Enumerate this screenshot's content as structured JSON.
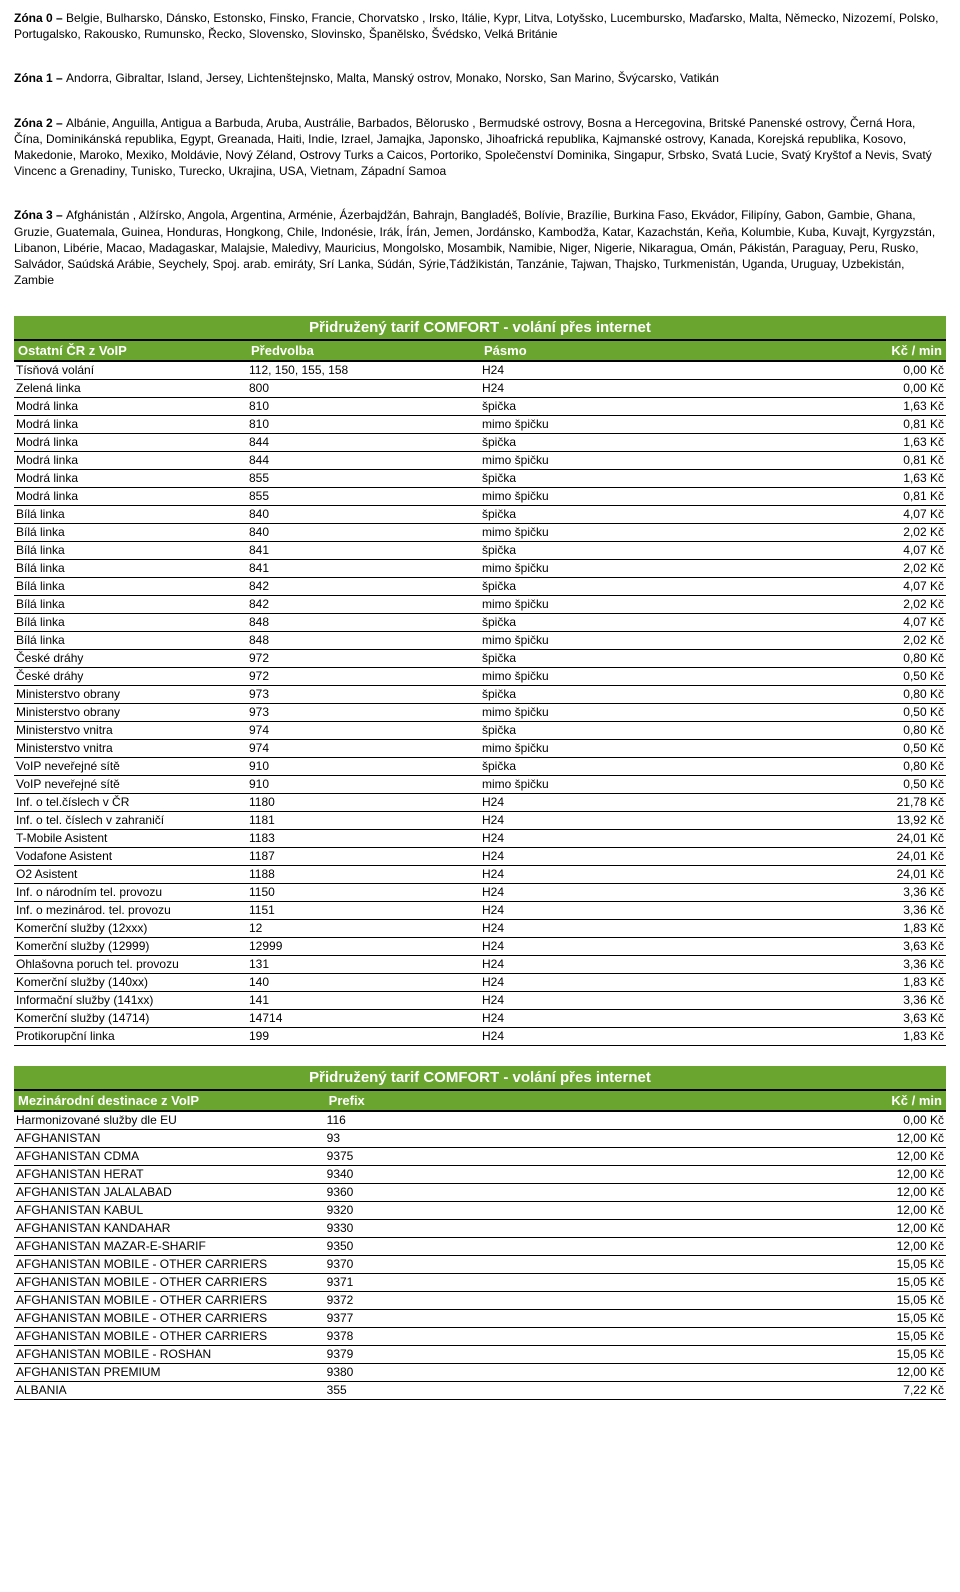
{
  "zones": [
    {
      "label": "Zóna 0 – ",
      "text": "Belgie, Bulharsko, Dánsko, Estonsko, Finsko, Francie, Chorvatsko , Irsko, Itálie, Kypr, Litva, Lotyšsko, Lucembursko, Maďarsko, Malta, Německo, Nizozemí, Polsko, Portugalsko, Rakousko, Rumunsko, Řecko, Slovensko, Slovinsko, Španělsko, Švédsko, Velká Británie"
    },
    {
      "label": "Zóna 1 – ",
      "text": "Andorra, Gibraltar, Island, Jersey, Lichtenštejnsko, Malta, Manský ostrov, Monako, Norsko, San Marino, Švýcarsko, Vatikán"
    },
    {
      "label": "Zóna 2 – ",
      "text": "Albánie, Anguilla, Antigua a Barbuda, Aruba, Austrálie, Barbados, Bělorusko , Bermudské ostrovy, Bosna a Hercegovina, Britské Panenské ostrovy, Černá Hora, Čína, Dominikánská republika, Egypt, Greanada, Haiti, Indie, Izrael, Jamajka, Japonsko, Jihoafrická republika, Kajmanské ostrovy, Kanada, Korejská republika, Kosovo, Makedonie, Maroko, Mexiko, Moldávie, Nový Zéland, Ostrovy Turks a Caicos, Portoriko, Společenství Dominika, Singapur, Srbsko, Svatá Lucie, Svatý Kryštof a Nevis, Svatý Vincenc a Grenadiny, Tunisko, Turecko, Ukrajina, USA, Vietnam, Západní Samoa"
    },
    {
      "label": "Zóna 3 – ",
      "text": "Afghánistán , Alžírsko, Angola, Argentina, Arménie, Ázerbajdžán, Bahrajn, Bangladéš, Bolívie, Brazílie, Burkina Faso, Ekvádor, Filipíny, Gabon, Gambie, Ghana, Gruzie, Guatemala, Guinea, Honduras, Hongkong, Chile, Indonésie, Irák, Írán, Jemen, Jordánsko, Kambodža, Katar, Kazachstán, Keňa, Kolumbie, Kuba, Kuvajt, Kyrgyzstán, Libanon, Libérie, Macao, Madagaskar, Malajsie, Maledivy, Mauricius, Mongolsko, Mosambik, Namibie, Niger, Nigerie, Nikaragua, Omán, Pákistán, Paraguay, Peru, Rusko, Salvádor, Saúdská Arábie, Seychely, Spoj. arab. emiráty, Srí Lanka, Súdán, Sýrie,Tádžikistán, Tanzánie, Tajwan, Thajsko, Turkmenistán, Uganda, Uruguay, Uzbekistán, Zambie"
    }
  ],
  "table1": {
    "title": "Přidružený tarif COMFORT - volání přes internet",
    "headers": [
      "Ostatní ČR z VoIP",
      "Předvolba",
      "Pásmo",
      "Kč / min"
    ],
    "rows": [
      [
        "Tísňová volání",
        "112, 150, 155, 158",
        "H24",
        "0,00 Kč"
      ],
      [
        "Zelená linka",
        "800",
        "H24",
        "0,00 Kč"
      ],
      [
        "Modrá linka",
        "810",
        "špička",
        "1,63 Kč"
      ],
      [
        "Modrá linka",
        "810",
        "mimo špičku",
        "0,81 Kč"
      ],
      [
        "Modrá linka",
        "844",
        "špička",
        "1,63 Kč"
      ],
      [
        "Modrá linka",
        "844",
        "mimo špičku",
        "0,81 Kč"
      ],
      [
        "Modrá linka",
        "855",
        "špička",
        "1,63 Kč"
      ],
      [
        "Modrá linka",
        "855",
        "mimo špičku",
        "0,81 Kč"
      ],
      [
        "Bílá linka",
        "840",
        "špička",
        "4,07 Kč"
      ],
      [
        "Bílá linka",
        "840",
        "mimo špičku",
        "2,02 Kč"
      ],
      [
        "Bílá linka",
        "841",
        "špička",
        "4,07 Kč"
      ],
      [
        "Bílá linka",
        "841",
        "mimo špičku",
        "2,02 Kč"
      ],
      [
        "Bílá linka",
        "842",
        "špička",
        "4,07 Kč"
      ],
      [
        "Bílá linka",
        "842",
        "mimo špičku",
        "2,02 Kč"
      ],
      [
        "Bílá linka",
        "848",
        "špička",
        "4,07 Kč"
      ],
      [
        "Bílá linka",
        "848",
        "mimo špičku",
        "2,02 Kč"
      ],
      [
        "České dráhy",
        "972",
        "špička",
        "0,80 Kč"
      ],
      [
        "České dráhy",
        "972",
        "mimo špičku",
        "0,50 Kč"
      ],
      [
        "Ministerstvo obrany",
        "973",
        "špička",
        "0,80 Kč"
      ],
      [
        "Ministerstvo obrany",
        "973",
        "mimo špičku",
        "0,50 Kč"
      ],
      [
        "Ministerstvo vnitra",
        "974",
        "špička",
        "0,80 Kč"
      ],
      [
        "Ministerstvo vnitra",
        "974",
        "mimo špičku",
        "0,50 Kč"
      ],
      [
        "VoIP neveřejné sítě",
        "910",
        "špička",
        "0,80 Kč"
      ],
      [
        "VoIP neveřejné sítě",
        "910",
        "mimo špičku",
        "0,50 Kč"
      ],
      [
        "Inf. o tel.číslech v ČR",
        "1180",
        "H24",
        "21,78 Kč"
      ],
      [
        "Inf. o tel. číslech v zahraničí",
        "1181",
        "H24",
        "13,92 Kč"
      ],
      [
        "T-Mobile Asistent",
        "1183",
        "H24",
        "24,01 Kč"
      ],
      [
        "Vodafone Asistent",
        "1187",
        "H24",
        "24,01 Kč"
      ],
      [
        "O2 Asistent",
        "1188",
        "H24",
        "24,01 Kč"
      ],
      [
        "Inf. o národním tel. provozu",
        "1150",
        "H24",
        "3,36 Kč"
      ],
      [
        "Inf. o mezinárod. tel. provozu",
        "1151",
        "H24",
        "3,36 Kč"
      ],
      [
        "Komerční služby (12xxx)",
        "12",
        "H24",
        "1,83 Kč"
      ],
      [
        "Komerční služby (12999)",
        "12999",
        "H24",
        "3,63 Kč"
      ],
      [
        "Ohlašovna poruch tel. provozu",
        "131",
        "H24",
        "3,36 Kč"
      ],
      [
        "Komerční služby (140xx)",
        "140",
        "H24",
        "1,83 Kč"
      ],
      [
        "Informační služby (141xx)",
        "141",
        "H24",
        "3,36 Kč"
      ],
      [
        "Komerční služby (14714)",
        "14714",
        "H24",
        "3,63 Kč"
      ],
      [
        "Protikorupční linka",
        "199",
        "H24",
        "1,83 Kč"
      ]
    ]
  },
  "table2": {
    "title": "Přidružený tarif COMFORT - volání přes internet",
    "headers": [
      "Mezinárodní destinace z VoIP",
      "Prefix",
      "Kč / min"
    ],
    "rows": [
      [
        "Harmonizované služby dle EU",
        "116",
        "0,00 Kč"
      ],
      [
        "AFGHANISTAN",
        "93",
        "12,00 Kč"
      ],
      [
        "AFGHANISTAN CDMA",
        "9375",
        "12,00 Kč"
      ],
      [
        "AFGHANISTAN HERAT",
        "9340",
        "12,00 Kč"
      ],
      [
        "AFGHANISTAN JALALABAD",
        "9360",
        "12,00 Kč"
      ],
      [
        "AFGHANISTAN KABUL",
        "9320",
        "12,00 Kč"
      ],
      [
        "AFGHANISTAN KANDAHAR",
        "9330",
        "12,00 Kč"
      ],
      [
        "AFGHANISTAN MAZAR-E-SHARIF",
        "9350",
        "12,00 Kč"
      ],
      [
        "AFGHANISTAN MOBILE - OTHER CARRIERS",
        "9370",
        "15,05 Kč"
      ],
      [
        "AFGHANISTAN MOBILE - OTHER CARRIERS",
        "9371",
        "15,05 Kč"
      ],
      [
        "AFGHANISTAN MOBILE - OTHER CARRIERS",
        "9372",
        "15,05 Kč"
      ],
      [
        "AFGHANISTAN MOBILE - OTHER CARRIERS",
        "9377",
        "15,05 Kč"
      ],
      [
        "AFGHANISTAN MOBILE - OTHER CARRIERS",
        "9378",
        "15,05 Kč"
      ],
      [
        "AFGHANISTAN MOBILE - ROSHAN",
        "9379",
        "15,05 Kč"
      ],
      [
        "AFGHANISTAN PREMIUM",
        "9380",
        "12,00 Kč"
      ],
      [
        "ALBANIA",
        "355",
        "7,22 Kč"
      ]
    ]
  }
}
